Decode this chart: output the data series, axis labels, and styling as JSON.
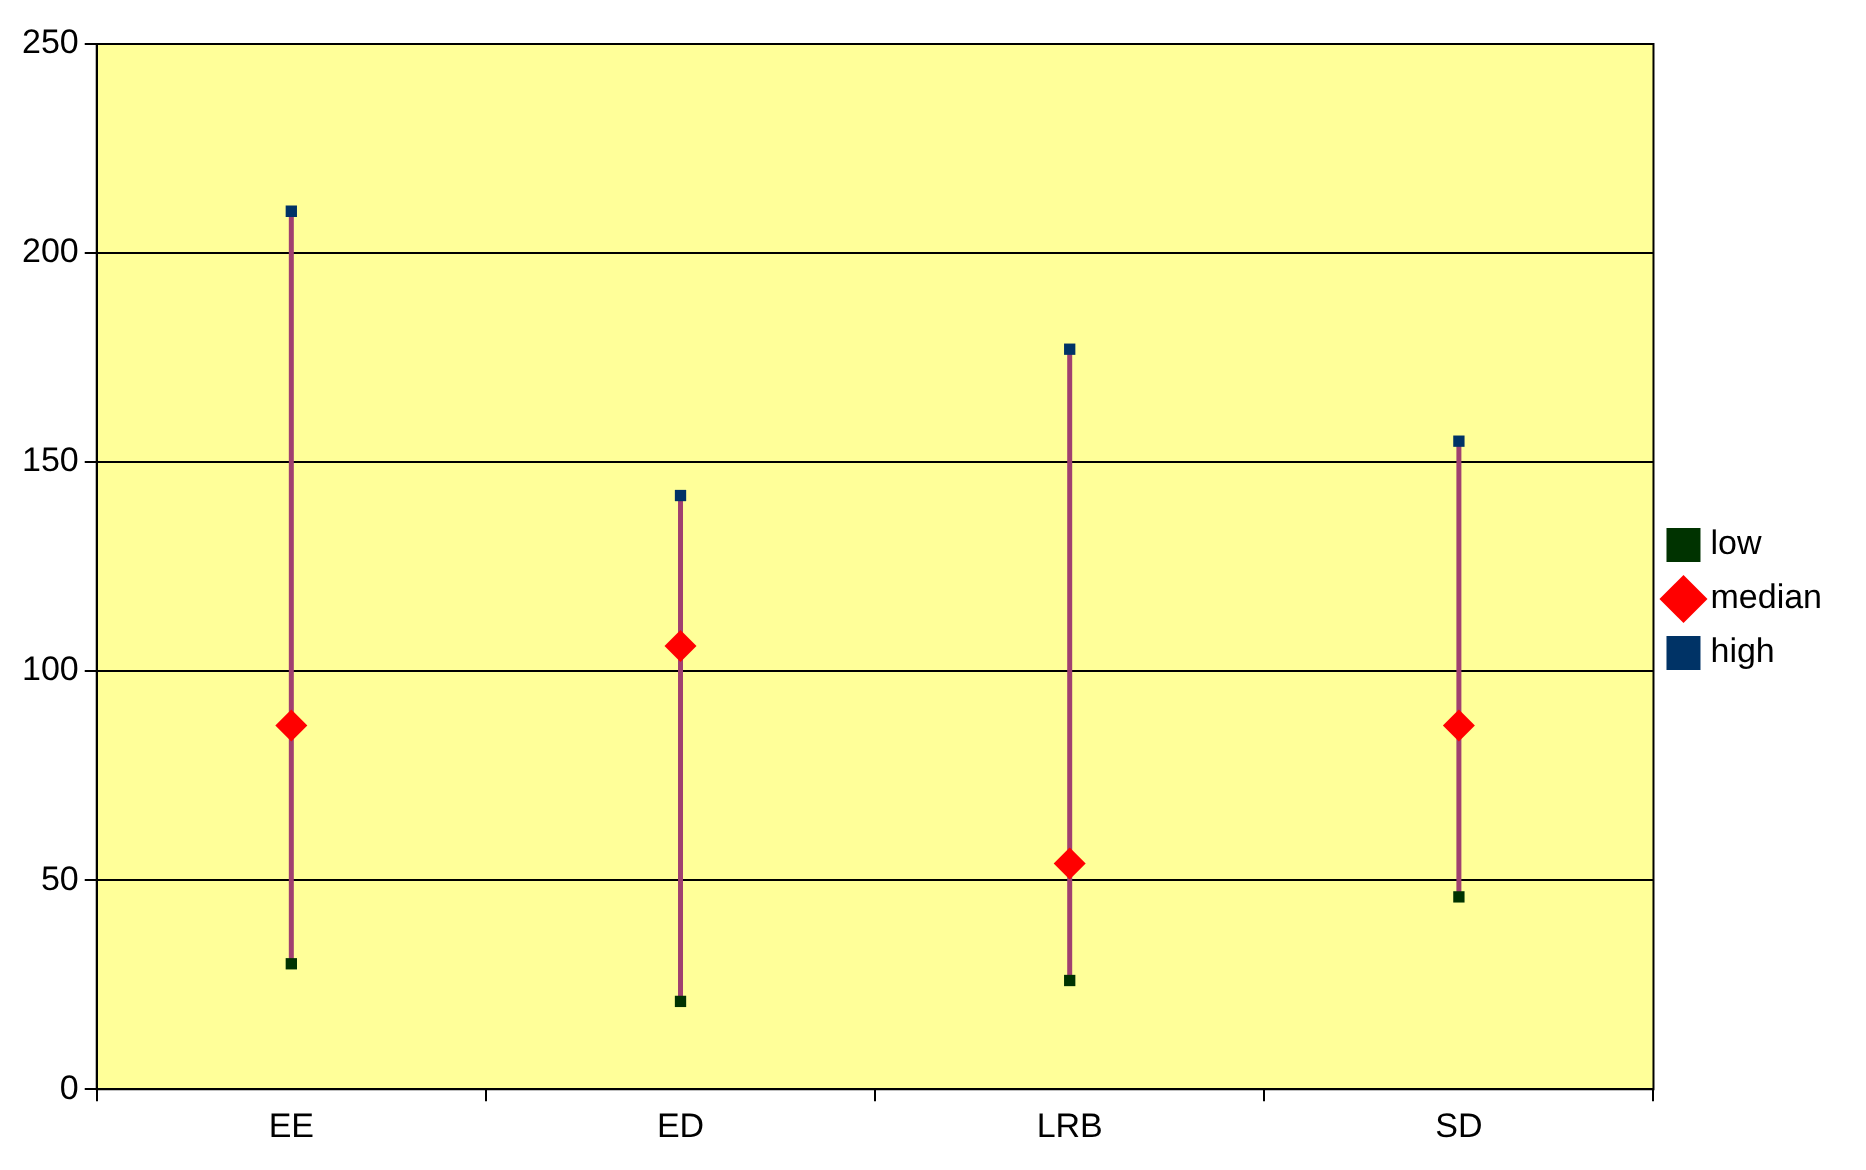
{
  "chart_data": {
    "type": "scatter",
    "categories": [
      "EE",
      "ED",
      "LRB",
      "SD"
    ],
    "series": [
      {
        "name": "low",
        "color": "#003300",
        "marker": "square",
        "values": [
          30,
          21,
          26,
          46
        ]
      },
      {
        "name": "median",
        "color": "#ff0000",
        "marker": "diamond",
        "values": [
          87,
          106,
          54,
          87
        ]
      },
      {
        "name": "high",
        "color": "#003366",
        "marker": "square",
        "values": [
          210,
          142,
          177,
          155
        ]
      }
    ],
    "ylim": [
      0,
      250
    ],
    "yticks": [
      0,
      50,
      100,
      150,
      200,
      250
    ],
    "grid": "y",
    "legend": "right"
  }
}
